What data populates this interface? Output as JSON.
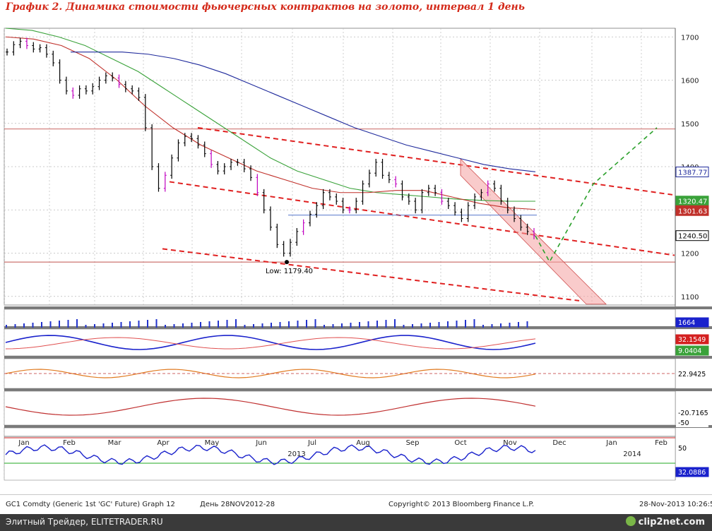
{
  "title": "График 2.   Динамика стоимости фьючерсных контрактов на золото, интервал 1 день",
  "chart_data": {
    "type": "line",
    "title": "График 2.   Динамика стоимости фьючерсных контрактов на золото, интервал 1 день",
    "x_ticks": [
      "Jan",
      "Feb",
      "Mar",
      "Apr",
      "May",
      "Jun",
      "Jul",
      "Aug",
      "Sep",
      "Oct",
      "Nov",
      "Dec",
      "Jan",
      "Feb"
    ],
    "year_labels": [
      "2013",
      "2014"
    ],
    "ylim": [
      1080,
      1720
    ],
    "y_ticks": [
      1100,
      1200,
      1300,
      1400,
      1500,
      1600,
      1700
    ],
    "price": [
      1665,
      1682,
      1690,
      1680,
      1672,
      1675,
      1660,
      1640,
      1600,
      1575,
      1565,
      1580,
      1575,
      1585,
      1600,
      1610,
      1605,
      1590,
      1580,
      1575,
      1560,
      1490,
      1400,
      1350,
      1380,
      1420,
      1455,
      1470,
      1465,
      1450,
      1430,
      1405,
      1390,
      1400,
      1410,
      1410,
      1395,
      1375,
      1340,
      1300,
      1260,
      1220,
      1200,
      1225,
      1250,
      1270,
      1290,
      1310,
      1340,
      1330,
      1320,
      1300,
      1300,
      1320,
      1360,
      1385,
      1410,
      1380,
      1370,
      1360,
      1330,
      1320,
      1300,
      1340,
      1350,
      1340,
      1320,
      1310,
      1295,
      1280,
      1310,
      1330,
      1340,
      1360,
      1350,
      1320,
      1300,
      1280,
      1260,
      1250,
      1240
    ],
    "series": [
      {
        "name": "",
        "values": [
          1720,
          1715,
          1700,
          1680,
          1650,
          1620,
          1580,
          1540,
          1500,
          1460,
          1420,
          1390,
          1370,
          1350,
          1340,
          1335,
          1330,
          1325,
          1322,
          1320,
          1320
        ]
      },
      {
        "name": "",
        "values": [
          1700,
          1695,
          1680,
          1650,
          1600,
          1540,
          1490,
          1450,
          1420,
          1390,
          1370,
          1350,
          1340,
          1340,
          1345,
          1345,
          1330,
          1315,
          1305,
          1301
        ]
      },
      {
        "name": "",
        "values": [
          1665,
          1665,
          1665,
          1660,
          1650,
          1635,
          1615,
          1590,
          1565,
          1540,
          1515,
          1490,
          1470,
          1450,
          1435,
          1420,
          1405,
          1395,
          1388
        ]
      }
    ],
    "markers": {
      "low_label": "Low: 1179.40",
      "low_value": 1179.4
    },
    "levels": [
      {
        "value": 1487,
        "color": "#c0504d"
      },
      {
        "value": 1179.4,
        "color": "#c0504d"
      }
    ],
    "price_tags": [
      {
        "value": "1387.77",
        "color": "#1f2a9c"
      },
      {
        "value": "1320.47",
        "color": "#3aa23a"
      },
      {
        "value": "1301.63",
        "color": "#c0302a"
      },
      {
        "value": "1240.50",
        "color": "#000000"
      }
    ],
    "indicator_tags": {
      "volume": "1664",
      "osc1": [
        "32.1549",
        "9.0404"
      ],
      "osc2": "22.9425",
      "osc3": [
        "-20.7165",
        "-50"
      ],
      "osc4": [
        "50",
        "32.0886"
      ]
    }
  },
  "footer": {
    "left": "GC1 Comdty (Generic 1st 'GC' Future) Graph 12",
    "mid": "День 28NOV2012-28",
    "copyright": "Copyright© 2013 Bloomberg Finance L.P.",
    "date": "28-Nov-2013 10:26:59"
  },
  "bar": {
    "left": "Элитный Трейдер, ELITETRADER.RU",
    "right": "clip2net.com"
  },
  "colors": {
    "title": "#d42a1a",
    "ma_blue": "#1f2a9c",
    "ma_green": "#3aa23a",
    "ma_red": "#c0302a",
    "channel": "#e02020"
  }
}
